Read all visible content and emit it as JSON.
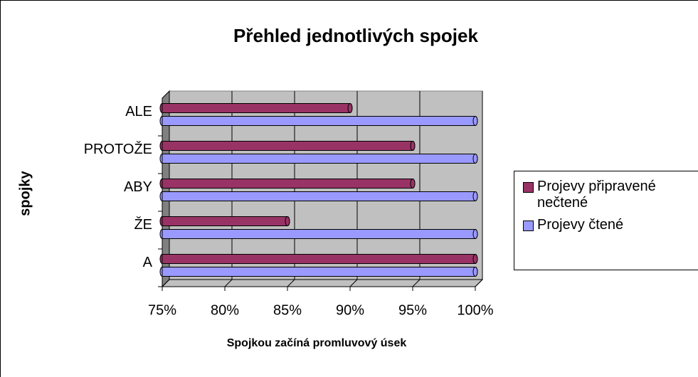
{
  "chart_data": {
    "type": "bar",
    "orientation": "horizontal",
    "title": "Přehled jednotlivých spojek",
    "x_label": "Spojkou začíná promluvový úsek",
    "y_label": "spojky",
    "categories": [
      "A",
      "ŽE",
      "ABY",
      "PROTOŽE",
      "ALE"
    ],
    "series": [
      {
        "name": "Projevy připravené nečtené",
        "color": "#993366",
        "values": [
          100,
          85,
          95,
          95,
          90
        ]
      },
      {
        "name": "Projevy čtené",
        "color": "#9999ff",
        "values": [
          100,
          100,
          100,
          100,
          100
        ]
      }
    ],
    "xlim": [
      75,
      100
    ],
    "xticks": [
      {
        "value": 75,
        "label": "75%"
      },
      {
        "value": 80,
        "label": "80%"
      },
      {
        "value": 85,
        "label": "85%"
      },
      {
        "value": 90,
        "label": "90%"
      },
      {
        "value": 95,
        "label": "95%"
      },
      {
        "value": 100,
        "label": "100%"
      }
    ],
    "grid": true,
    "legend": "right"
  }
}
